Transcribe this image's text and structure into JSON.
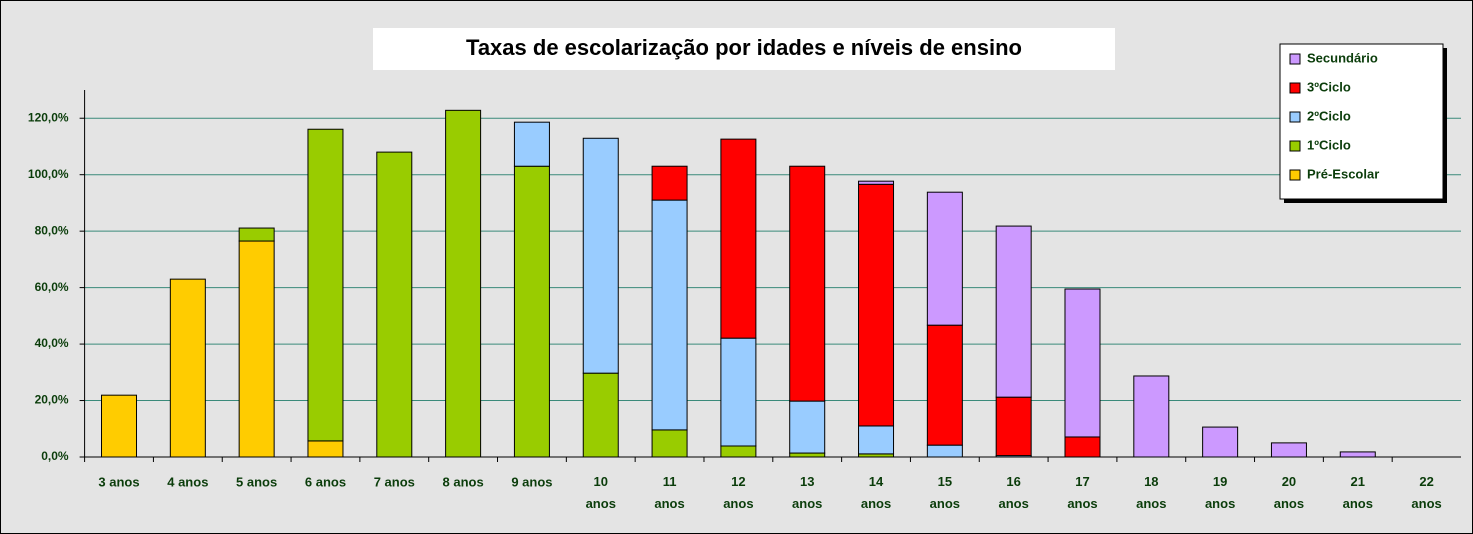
{
  "chart_data": {
    "type": "stacked_bar",
    "title": "Taxas de escolarização por idades e níveis de ensino",
    "categories": [
      "3 anos",
      "4 anos",
      "5 anos",
      "6 anos",
      "7 anos",
      "8 anos",
      "9 anos",
      "10 anos",
      "11 anos",
      "12 anos",
      "13 anos",
      "14 anos",
      "15 anos",
      "16 anos",
      "17 anos",
      "18 anos",
      "19 anos",
      "20 anos",
      "21 anos",
      "22 anos"
    ],
    "series": [
      {
        "name": "Pré-Escolar",
        "color": "#ffcc00",
        "values": [
          21.9,
          63.0,
          76.5,
          5.7,
          0,
          0,
          0,
          0,
          0,
          0,
          0,
          0,
          0,
          0,
          0,
          0,
          0,
          0,
          0,
          0
        ]
      },
      {
        "name": "1ºCiclo",
        "color": "#99cc00",
        "values": [
          0,
          0,
          4.6,
          110.4,
          108.0,
          122.8,
          103.0,
          29.7,
          9.6,
          3.9,
          1.4,
          1.1,
          0,
          0,
          0,
          0,
          0,
          0,
          0,
          0
        ]
      },
      {
        "name": "2ºCiclo",
        "color": "#99ccff",
        "values": [
          0,
          0,
          0,
          0,
          0,
          0,
          15.6,
          83.2,
          81.4,
          38.2,
          18.4,
          9.9,
          4.2,
          0.5,
          0,
          0,
          0,
          0,
          0,
          0
        ]
      },
      {
        "name": "3ºCiclo",
        "color": "#ff0000",
        "values": [
          0,
          0,
          0,
          0,
          0,
          0,
          0,
          0,
          12.0,
          70.5,
          83.2,
          85.6,
          42.5,
          20.7,
          7.1,
          0,
          0,
          0,
          0,
          0
        ]
      },
      {
        "name": "Secundário",
        "color": "#cc99ff",
        "values": [
          0,
          0,
          0,
          0,
          0,
          0,
          0,
          0,
          0,
          0,
          0,
          1.1,
          47.1,
          60.6,
          52.4,
          28.7,
          10.6,
          5.0,
          1.8,
          0
        ]
      }
    ],
    "ylim": [
      0,
      130
    ],
    "yticks": [
      {
        "value": 0,
        "label": "0,0%"
      },
      {
        "value": 20,
        "label": "20,0%"
      },
      {
        "value": 40,
        "label": "40,0%"
      },
      {
        "value": 60,
        "label": "60,0%"
      },
      {
        "value": 80,
        "label": "80,0%"
      },
      {
        "value": 100,
        "label": "100,0%"
      },
      {
        "value": 120,
        "label": "120,0%"
      }
    ],
    "grid": true,
    "legend": "top-right"
  }
}
